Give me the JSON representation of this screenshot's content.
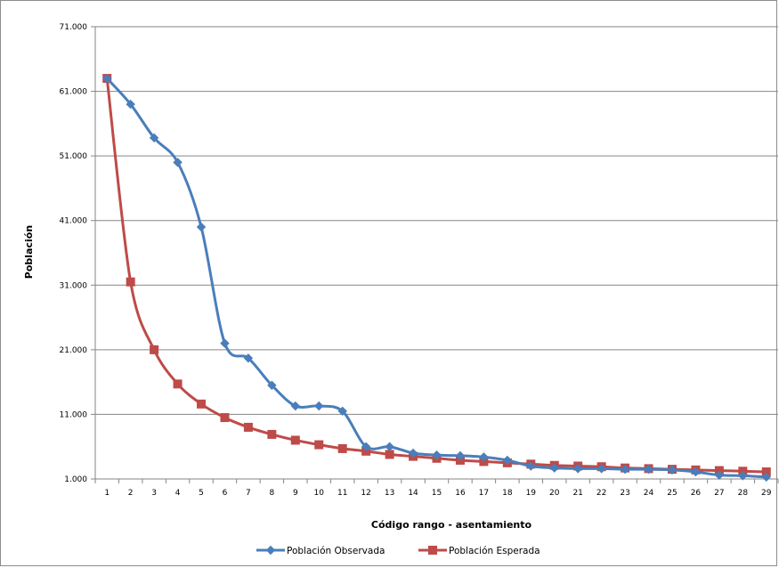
{
  "chart_data": {
    "type": "line",
    "title": "",
    "xlabel": "Código rango - asentamiento",
    "ylabel": "Población",
    "ylim": [
      1000,
      71000
    ],
    "yticks": [
      1000,
      11000,
      21000,
      31000,
      41000,
      51000,
      61000,
      71000
    ],
    "ytick_labels": [
      "1.000",
      "11.000",
      "21.000",
      "31.000",
      "41.000",
      "51.000",
      "61.000",
      "71.000"
    ],
    "categories": [
      "1",
      "2",
      "3",
      "4",
      "5",
      "6",
      "7",
      "8",
      "9",
      "10",
      "11",
      "12",
      "13",
      "14",
      "15",
      "16",
      "17",
      "18",
      "19",
      "20",
      "21",
      "22",
      "23",
      "24",
      "25",
      "26",
      "27",
      "28",
      "29"
    ],
    "grid": true,
    "legend_position": "bottom",
    "series": [
      {
        "name": "Población Observada",
        "color": "#4a7ebb",
        "marker": "diamond",
        "values": [
          63000,
          59000,
          53800,
          50000,
          40000,
          22000,
          19700,
          15500,
          12300,
          12300,
          11500,
          6000,
          6000,
          5000,
          4700,
          4600,
          4400,
          3900,
          3000,
          2700,
          2600,
          2600,
          2500,
          2500,
          2400,
          2100,
          1600,
          1500,
          1300
        ]
      },
      {
        "name": "Población Esperada",
        "color": "#be4b48",
        "marker": "square",
        "values": [
          63000,
          31500,
          21000,
          15700,
          12600,
          10500,
          9000,
          7900,
          7000,
          6300,
          5700,
          5300,
          4800,
          4500,
          4200,
          3900,
          3700,
          3500,
          3300,
          3100,
          3000,
          2900,
          2700,
          2600,
          2500,
          2400,
          2300,
          2200,
          2100
        ]
      }
    ]
  }
}
